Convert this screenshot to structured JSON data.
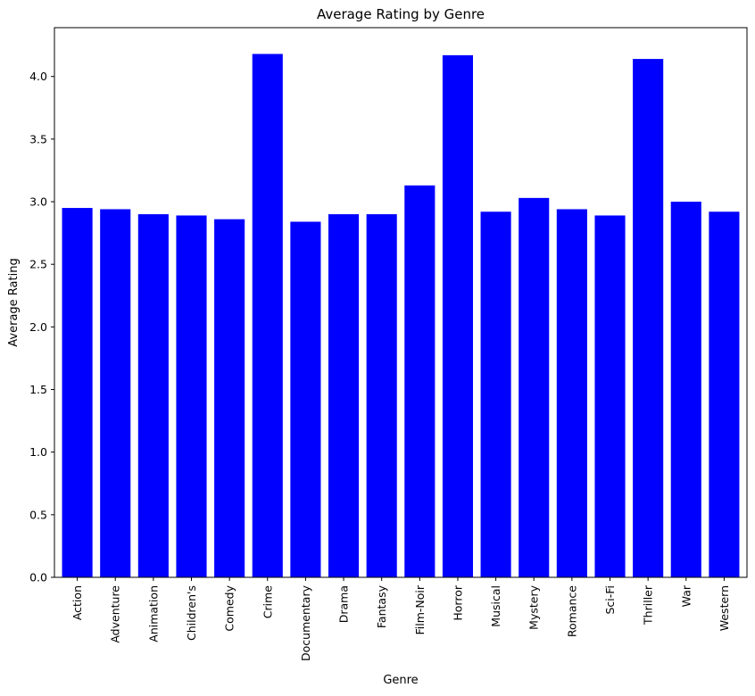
{
  "chart_data": {
    "type": "bar",
    "title": "Average Rating by Genre",
    "xlabel": "Genre",
    "ylabel": "Average Rating",
    "categories": [
      "Action",
      "Adventure",
      "Animation",
      "Children's",
      "Comedy",
      "Crime",
      "Documentary",
      "Drama",
      "Fantasy",
      "Film-Noir",
      "Horror",
      "Musical",
      "Mystery",
      "Romance",
      "Sci-Fi",
      "Thriller",
      "War",
      "Western"
    ],
    "values": [
      2.95,
      2.94,
      2.9,
      2.89,
      2.86,
      4.18,
      2.84,
      2.9,
      2.9,
      3.13,
      4.17,
      2.92,
      3.03,
      2.94,
      2.89,
      4.14,
      3.0,
      2.92
    ],
    "ylim": [
      0,
      4.39
    ],
    "yticks": [
      "0.0",
      "0.5",
      "1.0",
      "1.5",
      "2.0",
      "2.5",
      "3.0",
      "3.5",
      "4.0"
    ],
    "bar_color": "#0000ff",
    "grid": false,
    "legend": "none"
  }
}
